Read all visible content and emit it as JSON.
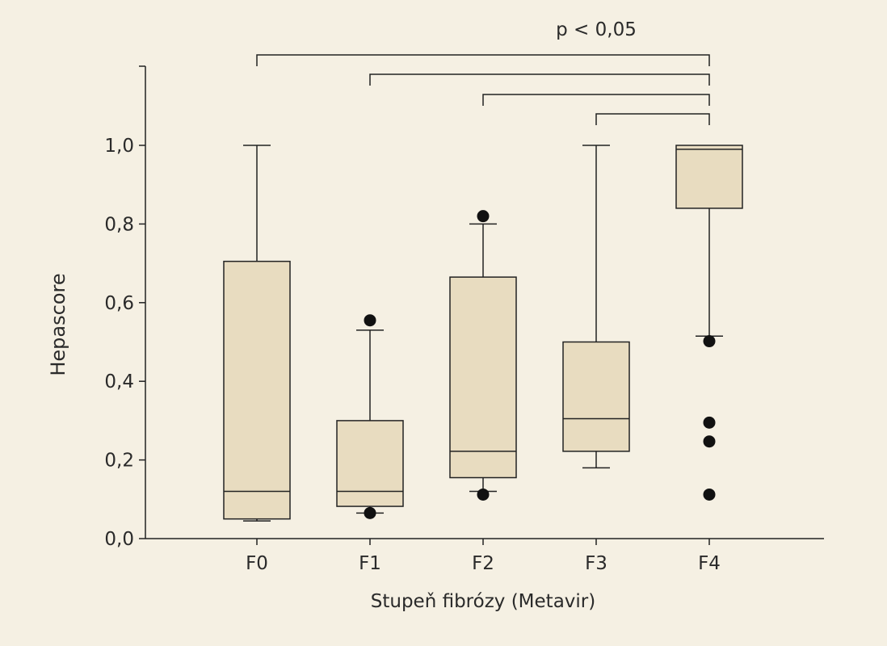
{
  "colors": {
    "background": "#f5f0e3",
    "box_fill": "#e8dcc0",
    "stroke": "#222222"
  },
  "chart_data": {
    "type": "boxplot",
    "title": "",
    "xlabel": "Stupeň fibrózy (Metavir)",
    "ylabel": "Hepascore",
    "ylim": [
      0,
      1.2
    ],
    "y_ticks": [
      {
        "value": 0.0,
        "label": "0,0"
      },
      {
        "value": 0.2,
        "label": "0,2"
      },
      {
        "value": 0.4,
        "label": "0,4"
      },
      {
        "value": 0.6,
        "label": "0,6"
      },
      {
        "value": 0.8,
        "label": "0,8"
      },
      {
        "value": 1.0,
        "label": "1,0"
      }
    ],
    "categories": [
      "F0",
      "F1",
      "F2",
      "F3",
      "F4"
    ],
    "boxes": [
      {
        "category": "F0",
        "whisker_low": 0.045,
        "q1": 0.05,
        "median": 0.12,
        "q3": 0.705,
        "whisker_high": 1.0,
        "outliers": []
      },
      {
        "category": "F1",
        "whisker_low": 0.065,
        "q1": 0.082,
        "median": 0.12,
        "q3": 0.3,
        "whisker_high": 0.53,
        "outliers": [
          0.555,
          0.065
        ]
      },
      {
        "category": "F2",
        "whisker_low": 0.12,
        "q1": 0.155,
        "median": 0.222,
        "q3": 0.665,
        "whisker_high": 0.8,
        "outliers": [
          0.82,
          0.112
        ]
      },
      {
        "category": "F3",
        "whisker_low": 0.18,
        "q1": 0.222,
        "median": 0.305,
        "q3": 0.5,
        "whisker_high": 1.0,
        "outliers": []
      },
      {
        "category": "F4",
        "whisker_low": 0.515,
        "q1": 0.84,
        "median": 0.99,
        "q3": 1.0,
        "whisker_high": 1.0,
        "outliers": [
          0.502,
          0.295,
          0.247,
          0.112
        ]
      }
    ],
    "significance": {
      "label": "p < 0,05",
      "brackets": [
        {
          "from": "F0",
          "to": "F4"
        },
        {
          "from": "F1",
          "to": "F4"
        },
        {
          "from": "F2",
          "to": "F4"
        },
        {
          "from": "F3",
          "to": "F4"
        }
      ]
    },
    "grid": false,
    "legend": "none"
  }
}
